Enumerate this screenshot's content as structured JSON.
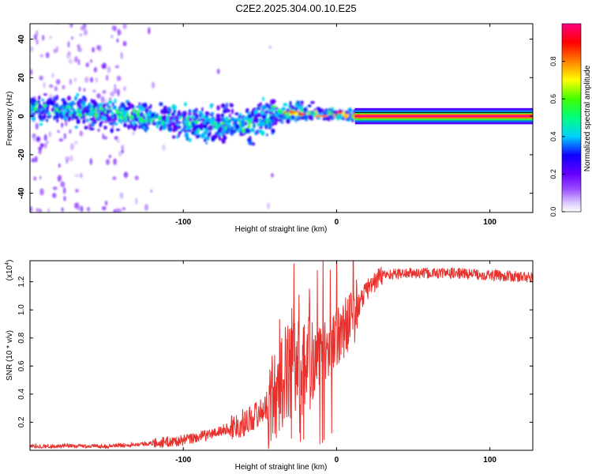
{
  "title": "C2E2.2025.304.00.10.E25",
  "chart_data": [
    {
      "type": "heatmap",
      "xlabel": "Height of straight line (km)",
      "ylabel": "Frequency (Hz)",
      "xlim": [
        -200,
        128
      ],
      "ylim": [
        -50,
        48
      ],
      "xticks": [
        -100,
        0,
        100
      ],
      "yticks": [
        -40,
        -20,
        0,
        20,
        40
      ],
      "colorbar": {
        "label": "Normalized spectral amplitude",
        "range": [
          0,
          1
        ],
        "ticks": [
          "0.0",
          "0.2",
          "0.4",
          "0.6",
          "0.8"
        ],
        "colors": [
          "#ffffff",
          "#c8b0ff",
          "#7a18ff",
          "#0b00ff",
          "#00ffff",
          "#00ff40",
          "#dfff00",
          "#ff6400",
          "#ff0000",
          "#ff0080"
        ]
      },
      "band_center_hz": [
        {
          "x": -200,
          "y": 4
        },
        {
          "x": -150,
          "y": 2
        },
        {
          "x": -100,
          "y": -3
        },
        {
          "x": -80,
          "y": -5
        },
        {
          "x": -60,
          "y": -4
        },
        {
          "x": -45,
          "y": 0
        },
        {
          "x": -30,
          "y": 2
        },
        {
          "x": -10,
          "y": 1
        },
        {
          "x": 0,
          "y": 1
        },
        {
          "x": 15,
          "y": 0
        },
        {
          "x": 128,
          "y": 0
        }
      ],
      "steady_line": {
        "x_start": 12,
        "x_end": 128,
        "y": 0,
        "amplitude": 1.0
      }
    },
    {
      "type": "line",
      "xlabel": "Height of straight line (km)",
      "ylabel": "SNR (10 * v/v)",
      "yscale_label": "(x10",
      "yscale_exp": "4",
      "multiplier": 10000,
      "xlim": [
        -200,
        128
      ],
      "ylim": [
        0,
        1.35
      ],
      "xticks": [
        -100,
        0,
        100
      ],
      "yticks": [
        "0.2",
        "0.4",
        "0.6",
        "0.8",
        "1.0",
        "1.2"
      ],
      "color": "#e8302c",
      "trend": [
        {
          "x": -200,
          "y": 0.03
        },
        {
          "x": -150,
          "y": 0.03
        },
        {
          "x": -120,
          "y": 0.05
        },
        {
          "x": -100,
          "y": 0.07
        },
        {
          "x": -80,
          "y": 0.12
        },
        {
          "x": -60,
          "y": 0.2
        },
        {
          "x": -50,
          "y": 0.27
        },
        {
          "x": -40,
          "y": 0.38
        },
        {
          "x": -33,
          "y": 0.55
        },
        {
          "x": -28,
          "y": 0.6
        },
        {
          "x": -20,
          "y": 0.6
        },
        {
          "x": -10,
          "y": 0.68
        },
        {
          "x": 0,
          "y": 0.8
        },
        {
          "x": 10,
          "y": 0.95
        },
        {
          "x": 20,
          "y": 1.15
        },
        {
          "x": 30,
          "y": 1.25
        },
        {
          "x": 45,
          "y": 1.26
        },
        {
          "x": 80,
          "y": 1.26
        },
        {
          "x": 128,
          "y": 1.23
        }
      ]
    }
  ]
}
